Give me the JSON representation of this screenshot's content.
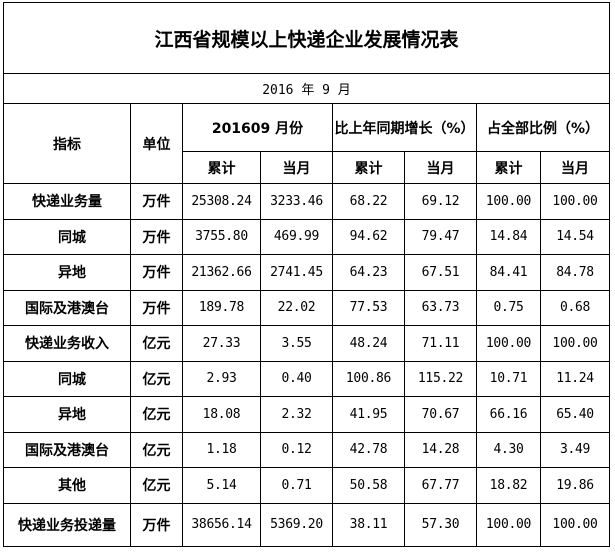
{
  "title": "江西省规模以上快递企业发展情况表",
  "date": "2016 年 9 月",
  "headers": {
    "indicator": "指标",
    "unit": "单位",
    "group1": "201609 月份",
    "group2": "比上年同期增长（%）",
    "group3": "占全部比例（%）",
    "cumulative": "累计",
    "month": "当月"
  },
  "rows": [
    {
      "name": "快递业务量",
      "unit": "万件",
      "v": [
        "25308.24",
        "3233.46",
        "68.22",
        "69.12",
        "100.00",
        "100.00"
      ]
    },
    {
      "name": "同城",
      "unit": "万件",
      "v": [
        "3755.80",
        "469.99",
        "94.62",
        "79.47",
        "14.84",
        "14.54"
      ]
    },
    {
      "name": "异地",
      "unit": "万件",
      "v": [
        "21362.66",
        "2741.45",
        "64.23",
        "67.51",
        "84.41",
        "84.78"
      ]
    },
    {
      "name": "国际及港澳台",
      "unit": "万件",
      "v": [
        "189.78",
        "22.02",
        "77.53",
        "63.73",
        "0.75",
        "0.68"
      ]
    },
    {
      "name": "快递业务收入",
      "unit": "亿元",
      "v": [
        "27.33",
        "3.55",
        "48.24",
        "71.11",
        "100.00",
        "100.00"
      ]
    },
    {
      "name": "同城",
      "unit": "亿元",
      "v": [
        "2.93",
        "0.40",
        "100.86",
        "115.22",
        "10.71",
        "11.24"
      ]
    },
    {
      "name": "异地",
      "unit": "亿元",
      "v": [
        "18.08",
        "2.32",
        "41.95",
        "70.67",
        "66.16",
        "65.40"
      ]
    },
    {
      "name": "国际及港澳台",
      "unit": "亿元",
      "v": [
        "1.18",
        "0.12",
        "42.78",
        "14.28",
        "4.30",
        "3.49"
      ]
    },
    {
      "name": "其他",
      "unit": "亿元",
      "v": [
        "5.14",
        "0.71",
        "50.58",
        "67.77",
        "18.82",
        "19.86"
      ]
    },
    {
      "name": "快递业务投递量",
      "unit": "万件",
      "v": [
        "38656.14",
        "5369.20",
        "38.11",
        "57.30",
        "100.00",
        "100.00"
      ]
    }
  ]
}
